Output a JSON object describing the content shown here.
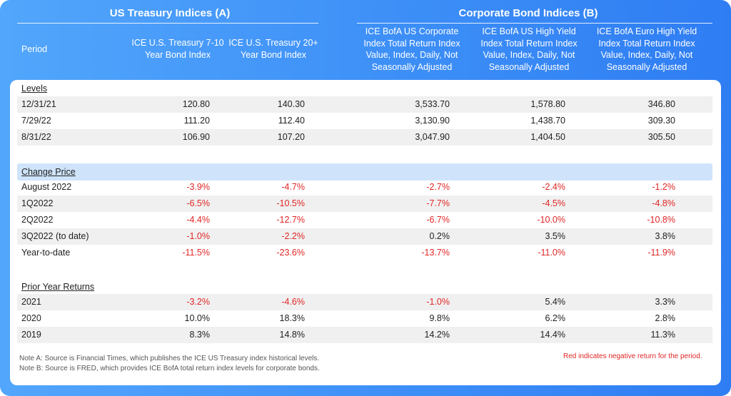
{
  "groups": {
    "treasury": "US Treasury Indices (A)",
    "corporate": "Corporate Bond Indices (B)"
  },
  "headers": {
    "period": "Period",
    "cols": [
      "ICE U.S. Treasury 7-10 Year Bond Index",
      "ICE U.S. Treasury 20+ Year Bond Index",
      "ICE BofA US Corporate Index Total Return Index Value, Index, Daily, Not Seasonally Adjusted",
      "ICE BofA US High Yield Index Total Return Index Value, Index, Daily, Not Seasonally Adjusted",
      "ICE BofA Euro High Yield Index Total Return Index Value, Index, Daily, Not Seasonally Adjusted"
    ]
  },
  "sections": {
    "levels": {
      "title": "Levels",
      "rows": [
        {
          "period": "12/31/21",
          "v": [
            "120.80",
            "140.30",
            "3,533.70",
            "1,578.80",
            "346.80"
          ]
        },
        {
          "period": "7/29/22",
          "v": [
            "111.20",
            "112.40",
            "3,130.90",
            "1,438.70",
            "309.30"
          ]
        },
        {
          "period": "8/31/22",
          "v": [
            "106.90",
            "107.20",
            "3,047.90",
            "1,404.50",
            "305.50"
          ]
        }
      ]
    },
    "change": {
      "title": "Change Price",
      "rows": [
        {
          "period": "August 2022",
          "v": [
            "-3.9%",
            "-4.7%",
            "-2.7%",
            "-2.4%",
            "-1.2%"
          ]
        },
        {
          "period": "1Q2022",
          "v": [
            "-6.5%",
            "-10.5%",
            "-7.7%",
            "-4.5%",
            "-4.8%"
          ]
        },
        {
          "period": "2Q2022",
          "v": [
            "-4.4%",
            "-12.7%",
            "-6.7%",
            "-10.0%",
            "-10.8%"
          ]
        },
        {
          "period": "3Q2022 (to date)",
          "v": [
            "-1.0%",
            "-2.2%",
            "0.2%",
            "3.5%",
            "3.8%"
          ]
        },
        {
          "period": "Year-to-date",
          "v": [
            "-11.5%",
            "-23.6%",
            "-13.7%",
            "-11.0%",
            "-11.9%"
          ]
        }
      ]
    },
    "prior": {
      "title": "Prior Year Returns",
      "rows": [
        {
          "period": "2021",
          "v": [
            "-3.2%",
            "-4.6%",
            "-1.0%",
            "5.4%",
            "3.3%"
          ]
        },
        {
          "period": "2020",
          "v": [
            "10.0%",
            "18.3%",
            "9.8%",
            "6.2%",
            "2.8%"
          ]
        },
        {
          "period": "2019",
          "v": [
            "8.3%",
            "14.8%",
            "14.2%",
            "14.4%",
            "11.3%"
          ]
        }
      ]
    }
  },
  "notes": {
    "a": "Note A:  Source is Financial Times, which publishes the ICE US Treasury index historical levels.",
    "b": "Note B: Source is FRED, which provides ICE BofA total return index levels for corporate bonds.",
    "legend": "Red indicates negative return for the period."
  },
  "colors": {
    "negative": "#e02626",
    "band": "#cfe4fb",
    "header_bg": "#3d8ff7"
  }
}
